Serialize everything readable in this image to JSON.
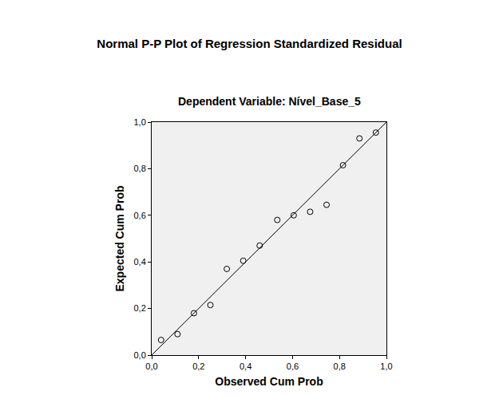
{
  "chart_data": {
    "type": "scatter",
    "title": "Normal P-P Plot of Regression Standardized Residual",
    "subtitle": "Dependent Variable: Nível_Base_5",
    "x_label": "Observed Cum Prob",
    "y_label": "Expected Cum Prob",
    "xlim": [
      0,
      1
    ],
    "ylim": [
      0,
      1
    ],
    "xticks": [
      {
        "value": 0,
        "label": "0,0"
      },
      {
        "value": 0.2,
        "label": "0,2"
      },
      {
        "value": 0.4,
        "label": "0,4"
      },
      {
        "value": 0.6,
        "label": "0,6"
      },
      {
        "value": 0.8,
        "label": "0,8"
      },
      {
        "value": 1,
        "label": "1,0"
      }
    ],
    "yticks": [
      {
        "value": 0,
        "label": "0,0"
      },
      {
        "value": 0.2,
        "label": "0,2"
      },
      {
        "value": 0.4,
        "label": "0,4"
      },
      {
        "value": 0.6,
        "label": "0,6"
      },
      {
        "value": 0.8,
        "label": "0,8"
      },
      {
        "value": 1,
        "label": "1,0"
      }
    ],
    "grid": false,
    "series": [
      {
        "type": "scatter",
        "marker": "circle-open",
        "color": "#000000",
        "x": [
          0.04,
          0.11,
          0.18,
          0.25,
          0.32,
          0.39,
          0.46,
          0.535,
          0.605,
          0.675,
          0.745,
          0.815,
          0.885,
          0.955
        ],
        "values": [
          0.065,
          0.09,
          0.18,
          0.215,
          0.37,
          0.405,
          0.47,
          0.58,
          0.6,
          0.615,
          0.645,
          0.815,
          0.93,
          0.955
        ]
      },
      {
        "type": "line",
        "line_style": "solid",
        "color": "#000000",
        "x": [
          0,
          1
        ],
        "values": [
          0,
          1
        ]
      }
    ]
  }
}
